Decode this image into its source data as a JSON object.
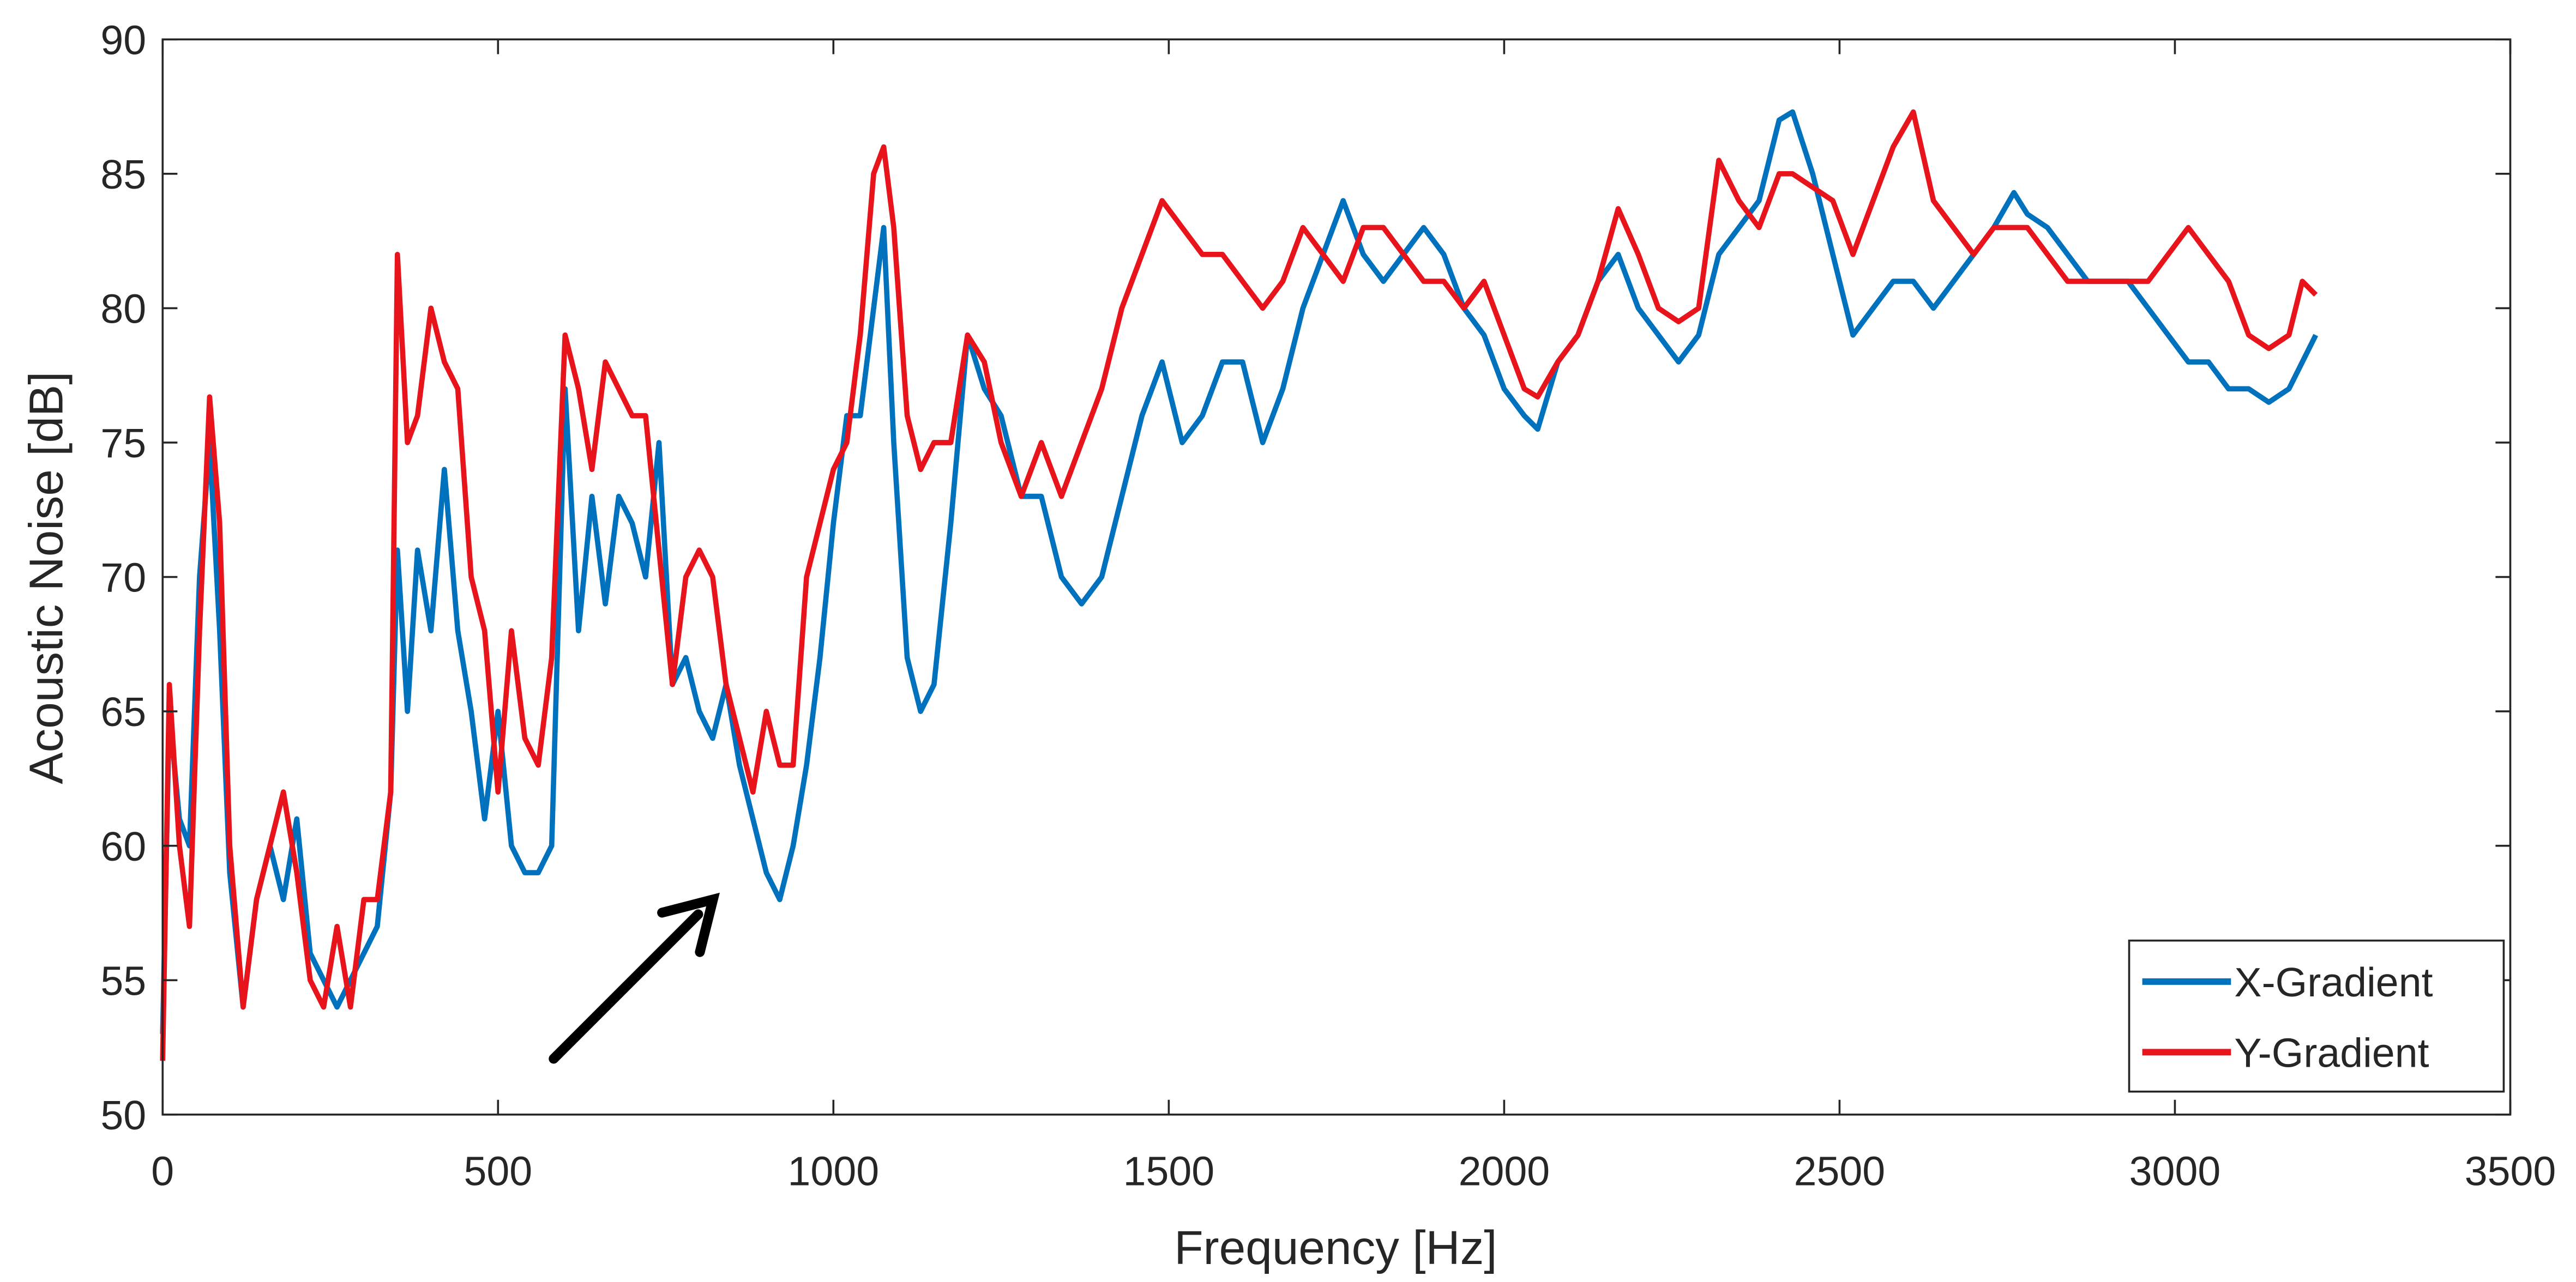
{
  "chart_data": {
    "type": "line",
    "xlabel": "Frequency [Hz]",
    "ylabel": "Acoustic Noise [dB]",
    "x": [
      0,
      10,
      25,
      40,
      55,
      70,
      85,
      100,
      120,
      140,
      160,
      180,
      200,
      220,
      240,
      260,
      280,
      300,
      320,
      340,
      350,
      365,
      380,
      400,
      420,
      440,
      460,
      480,
      500,
      520,
      540,
      560,
      580,
      600,
      620,
      640,
      660,
      680,
      700,
      720,
      740,
      760,
      780,
      800,
      820,
      840,
      860,
      880,
      900,
      920,
      940,
      960,
      980,
      1000,
      1020,
      1040,
      1060,
      1075,
      1090,
      1110,
      1130,
      1150,
      1175,
      1200,
      1225,
      1250,
      1280,
      1310,
      1340,
      1370,
      1400,
      1430,
      1460,
      1490,
      1520,
      1550,
      1580,
      1610,
      1640,
      1670,
      1700,
      1730,
      1760,
      1790,
      1820,
      1850,
      1880,
      1910,
      1940,
      1970,
      2000,
      2030,
      2050,
      2080,
      2110,
      2140,
      2170,
      2200,
      2230,
      2260,
      2290,
      2320,
      2350,
      2380,
      2410,
      2430,
      2460,
      2490,
      2520,
      2550,
      2580,
      2610,
      2640,
      2670,
      2700,
      2730,
      2760,
      2780,
      2810,
      2840,
      2870,
      2900,
      2930,
      2960,
      2990,
      3020,
      3050,
      3080,
      3110,
      3140,
      3170,
      3190,
      3210
    ],
    "series": [
      {
        "name": "X-Gradient",
        "color": "#0072bd",
        "values": [
          53,
          65,
          61,
          60,
          70,
          75,
          68,
          59,
          54,
          58,
          60,
          58,
          61,
          56,
          55,
          54,
          55,
          56,
          57,
          62,
          71,
          65,
          71,
          68,
          74,
          68,
          65,
          61,
          65,
          60,
          59,
          59,
          60,
          77,
          68,
          73,
          69,
          73,
          72,
          70,
          75,
          66,
          67,
          65,
          64,
          66,
          63,
          61,
          59,
          58,
          60,
          63,
          67,
          72,
          76,
          76,
          80,
          83,
          75,
          67,
          65,
          66,
          72,
          79,
          77,
          76,
          73,
          73,
          70,
          69,
          70,
          73,
          76,
          78,
          75,
          76,
          78,
          78,
          75,
          77,
          80,
          82,
          84,
          82,
          81,
          82,
          83,
          82,
          80,
          79,
          77,
          76,
          75.5,
          78,
          79,
          81,
          82,
          80,
          79,
          78,
          79,
          82,
          83,
          84,
          87,
          87.3,
          85,
          82,
          79,
          80,
          81,
          81,
          80,
          81,
          82,
          83,
          84.3,
          83.5,
          83,
          82,
          81,
          81,
          81,
          80,
          79,
          78,
          78,
          77,
          77,
          76.5,
          77,
          78,
          79
        ]
      },
      {
        "name": "Y-Gradient",
        "color": "#e8141c",
        "values": [
          52,
          66,
          60,
          57,
          68,
          76.7,
          72,
          60,
          54,
          58,
          60,
          62,
          59,
          55,
          54,
          57,
          54,
          58,
          58,
          62,
          82,
          75,
          76,
          80,
          78,
          77,
          70,
          68,
          62,
          68,
          64,
          63,
          67,
          79,
          77,
          74,
          78,
          77,
          76,
          76,
          71,
          66,
          70,
          71,
          70,
          66,
          64,
          62,
          65,
          63,
          63,
          70,
          72,
          74,
          75,
          79,
          85,
          86,
          83,
          76,
          74,
          75,
          75,
          79,
          78,
          75,
          73,
          75,
          73,
          75,
          77,
          80,
          82,
          84,
          83,
          82,
          82,
          81,
          80,
          81,
          83,
          82,
          81,
          83,
          83,
          82,
          81,
          81,
          80,
          81,
          79,
          77,
          76.7,
          78,
          79,
          81,
          83.7,
          82,
          80,
          79.5,
          80,
          85.5,
          84,
          83,
          85,
          85,
          84.5,
          84,
          82,
          84,
          86,
          87.3,
          84,
          83,
          82,
          83,
          83,
          83,
          82,
          81,
          81,
          81,
          81,
          81,
          82,
          83,
          82,
          81,
          79,
          78.5,
          79,
          81,
          80.5
        ]
      }
    ],
    "xlim": [
      0,
      3500
    ],
    "xticks": [
      0,
      500,
      1000,
      1500,
      2000,
      2500,
      3000,
      3500
    ],
    "ylim": [
      50,
      90
    ],
    "yticks": [
      50,
      55,
      60,
      65,
      70,
      75,
      80,
      85,
      90
    ],
    "legend": "lower right"
  }
}
